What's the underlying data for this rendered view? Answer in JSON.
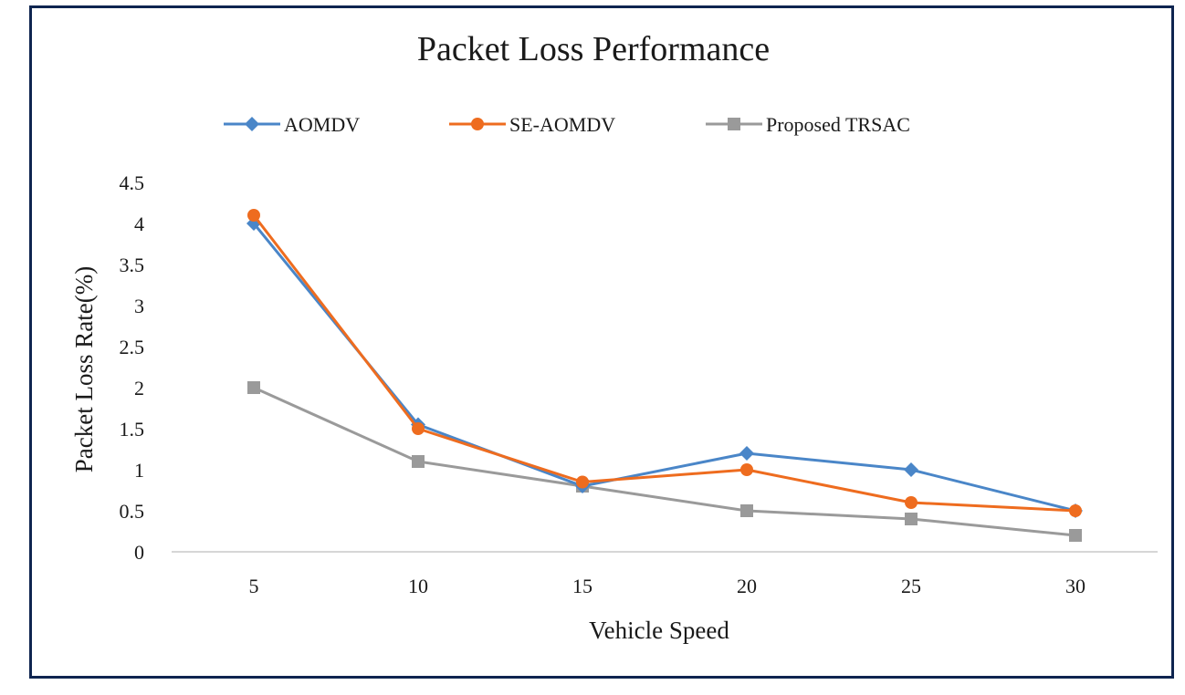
{
  "chart_data": {
    "type": "line",
    "title": "Packet Loss Performance",
    "xlabel": "Vehicle Speed",
    "ylabel": "Packet Loss Rate(%)",
    "categories": [
      "5",
      "10",
      "15",
      "20",
      "25",
      "30"
    ],
    "x": [
      5,
      10,
      15,
      20,
      25,
      30
    ],
    "ylim": [
      0,
      4.5
    ],
    "yticks": [
      "0",
      "0.5",
      "1",
      "1.5",
      "2",
      "2.5",
      "3",
      "3.5",
      "4",
      "4.5"
    ],
    "ytick_values": [
      0,
      0.5,
      1,
      1.5,
      2,
      2.5,
      3,
      3.5,
      4,
      4.5
    ],
    "grid": false,
    "legend_position": "top",
    "series": [
      {
        "name": "AOMDV",
        "color": "#4a86c8",
        "marker": "diamond",
        "values": [
          4.0,
          1.55,
          0.8,
          1.2,
          1.0,
          0.5
        ]
      },
      {
        "name": "SE-AOMDV",
        "color": "#ee6c1f",
        "marker": "circle",
        "values": [
          4.1,
          1.5,
          0.85,
          1.0,
          0.6,
          0.5
        ]
      },
      {
        "name": "Proposed TRSAC",
        "color": "#9a9a9a",
        "marker": "square",
        "values": [
          2.0,
          1.1,
          0.8,
          0.5,
          0.4,
          0.2
        ]
      }
    ]
  }
}
